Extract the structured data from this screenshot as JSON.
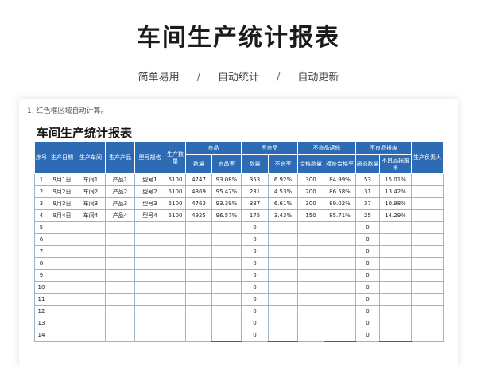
{
  "header": {
    "title": "车间生产统计报表",
    "features": [
      "简单易用",
      "自动统计",
      "自动更新"
    ],
    "separator": "/"
  },
  "sheet": {
    "note": "1. 红色框区域自动计算。",
    "title": "车间生产统计报表",
    "headers": {
      "seq": "序号",
      "date": "生产日期",
      "workshop": "生产车间",
      "product": "生产产品",
      "model": "型号规格",
      "production_qty": "生产数量",
      "good": "良品",
      "good_qty": "数量",
      "good_rate": "良品率",
      "bad": "不良品",
      "bad_qty": "数量",
      "bad_rate": "不良率",
      "rework": "不良品返修",
      "rework_pass_qty": "合格数量",
      "rework_pass_rate": "返修合格率",
      "scrap": "不良品报废",
      "scrap_qty": "报损数量",
      "scrap_rate": "不良品报废率",
      "manager": "生产负责人"
    },
    "rows": [
      {
        "seq": "1",
        "date": "9月1日",
        "workshop": "车间1",
        "product": "产品1",
        "model": "型号1",
        "qty": "5100",
        "good_qty": "4747",
        "good_rate": "93.08%",
        "bad_qty": "353",
        "bad_rate": "6.92%",
        "rework_qty": "300",
        "rework_rate": "84.99%",
        "scrap_qty": "53",
        "scrap_rate": "15.01%",
        "manager": ""
      },
      {
        "seq": "2",
        "date": "9月2日",
        "workshop": "车间2",
        "product": "产品2",
        "model": "型号2",
        "qty": "5100",
        "good_qty": "4869",
        "good_rate": "95.47%",
        "bad_qty": "231",
        "bad_rate": "4.53%",
        "rework_qty": "200",
        "rework_rate": "86.58%",
        "scrap_qty": "31",
        "scrap_rate": "13.42%",
        "manager": ""
      },
      {
        "seq": "3",
        "date": "9月3日",
        "workshop": "车间3",
        "product": "产品3",
        "model": "型号3",
        "qty": "5100",
        "good_qty": "4763",
        "good_rate": "93.39%",
        "bad_qty": "337",
        "bad_rate": "6.61%",
        "rework_qty": "300",
        "rework_rate": "89.02%",
        "scrap_qty": "37",
        "scrap_rate": "10.98%",
        "manager": ""
      },
      {
        "seq": "4",
        "date": "9月4日",
        "workshop": "车间4",
        "product": "产品4",
        "model": "型号4",
        "qty": "5100",
        "good_qty": "4925",
        "good_rate": "96.57%",
        "bad_qty": "175",
        "bad_rate": "3.43%",
        "rework_qty": "150",
        "rework_rate": "85.71%",
        "scrap_qty": "25",
        "scrap_rate": "14.29%",
        "manager": ""
      },
      {
        "seq": "5",
        "date": "",
        "workshop": "",
        "product": "",
        "model": "",
        "qty": "",
        "good_qty": "",
        "good_rate": "",
        "bad_qty": "0",
        "bad_rate": "",
        "rework_qty": "",
        "rework_rate": "",
        "scrap_qty": "0",
        "scrap_rate": "",
        "manager": ""
      },
      {
        "seq": "6",
        "date": "",
        "workshop": "",
        "product": "",
        "model": "",
        "qty": "",
        "good_qty": "",
        "good_rate": "",
        "bad_qty": "0",
        "bad_rate": "",
        "rework_qty": "",
        "rework_rate": "",
        "scrap_qty": "0",
        "scrap_rate": "",
        "manager": ""
      },
      {
        "seq": "7",
        "date": "",
        "workshop": "",
        "product": "",
        "model": "",
        "qty": "",
        "good_qty": "",
        "good_rate": "",
        "bad_qty": "0",
        "bad_rate": "",
        "rework_qty": "",
        "rework_rate": "",
        "scrap_qty": "0",
        "scrap_rate": "",
        "manager": ""
      },
      {
        "seq": "8",
        "date": "",
        "workshop": "",
        "product": "",
        "model": "",
        "qty": "",
        "good_qty": "",
        "good_rate": "",
        "bad_qty": "0",
        "bad_rate": "",
        "rework_qty": "",
        "rework_rate": "",
        "scrap_qty": "0",
        "scrap_rate": "",
        "manager": ""
      },
      {
        "seq": "9",
        "date": "",
        "workshop": "",
        "product": "",
        "model": "",
        "qty": "",
        "good_qty": "",
        "good_rate": "",
        "bad_qty": "0",
        "bad_rate": "",
        "rework_qty": "",
        "rework_rate": "",
        "scrap_qty": "0",
        "scrap_rate": "",
        "manager": ""
      },
      {
        "seq": "10",
        "date": "",
        "workshop": "",
        "product": "",
        "model": "",
        "qty": "",
        "good_qty": "",
        "good_rate": "",
        "bad_qty": "0",
        "bad_rate": "",
        "rework_qty": "",
        "rework_rate": "",
        "scrap_qty": "0",
        "scrap_rate": "",
        "manager": ""
      },
      {
        "seq": "11",
        "date": "",
        "workshop": "",
        "product": "",
        "model": "",
        "qty": "",
        "good_qty": "",
        "good_rate": "",
        "bad_qty": "0",
        "bad_rate": "",
        "rework_qty": "",
        "rework_rate": "",
        "scrap_qty": "0",
        "scrap_rate": "",
        "manager": ""
      },
      {
        "seq": "12",
        "date": "",
        "workshop": "",
        "product": "",
        "model": "",
        "qty": "",
        "good_qty": "",
        "good_rate": "",
        "bad_qty": "0",
        "bad_rate": "",
        "rework_qty": "",
        "rework_rate": "",
        "scrap_qty": "0",
        "scrap_rate": "",
        "manager": ""
      },
      {
        "seq": "13",
        "date": "",
        "workshop": "",
        "product": "",
        "model": "",
        "qty": "",
        "good_qty": "",
        "good_rate": "",
        "bad_qty": "0",
        "bad_rate": "",
        "rework_qty": "",
        "rework_rate": "",
        "scrap_qty": "0",
        "scrap_rate": "",
        "manager": ""
      },
      {
        "seq": "14",
        "date": "",
        "workshop": "",
        "product": "",
        "model": "",
        "qty": "",
        "good_qty": "",
        "good_rate": "",
        "bad_qty": "0",
        "bad_rate": "",
        "rework_qty": "",
        "rework_rate": "",
        "scrap_qty": "0",
        "scrap_rate": "",
        "manager": ""
      }
    ]
  },
  "colors": {
    "header_bg": "#2d6cb5",
    "grid_line": "#9bb3cf",
    "auto_calc_border": "#d9262c"
  }
}
